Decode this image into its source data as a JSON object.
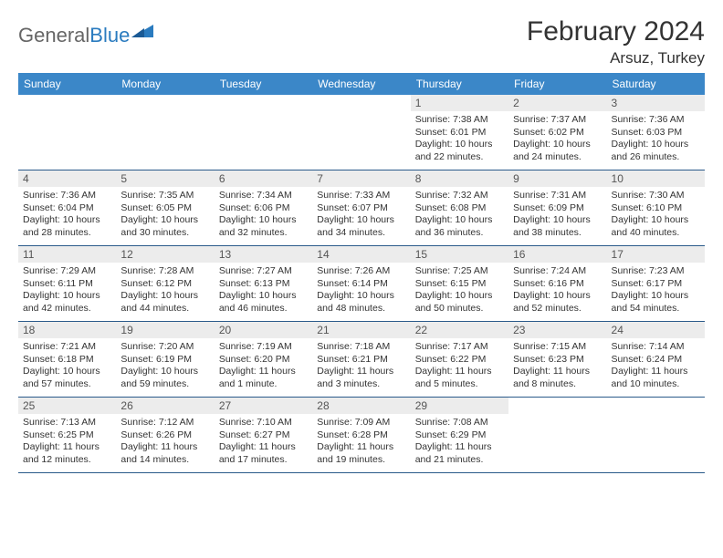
{
  "brand": {
    "part1": "General",
    "part2": "Blue"
  },
  "title": "February 2024",
  "location": "Arsuz, Turkey",
  "colors": {
    "header_bg": "#3b87c8",
    "header_text": "#ffffff",
    "daynum_bg": "#ececec",
    "daynum_text": "#555555",
    "body_text": "#333333",
    "week_border": "#2a5a8a",
    "page_bg": "#ffffff",
    "brand_gray": "#666666",
    "brand_blue": "#2a7bbf"
  },
  "typography": {
    "title_fontsize": 30,
    "location_fontsize": 17,
    "dayhead_fontsize": 12,
    "daynum_fontsize": 12,
    "cell_fontsize": 10.5
  },
  "day_names": [
    "Sunday",
    "Monday",
    "Tuesday",
    "Wednesday",
    "Thursday",
    "Friday",
    "Saturday"
  ],
  "weeks": [
    [
      {
        "empty": true
      },
      {
        "empty": true
      },
      {
        "empty": true
      },
      {
        "empty": true
      },
      {
        "day": "1",
        "sunrise": "Sunrise: 7:38 AM",
        "sunset": "Sunset: 6:01 PM",
        "dl1": "Daylight: 10 hours",
        "dl2": "and 22 minutes."
      },
      {
        "day": "2",
        "sunrise": "Sunrise: 7:37 AM",
        "sunset": "Sunset: 6:02 PM",
        "dl1": "Daylight: 10 hours",
        "dl2": "and 24 minutes."
      },
      {
        "day": "3",
        "sunrise": "Sunrise: 7:36 AM",
        "sunset": "Sunset: 6:03 PM",
        "dl1": "Daylight: 10 hours",
        "dl2": "and 26 minutes."
      }
    ],
    [
      {
        "day": "4",
        "sunrise": "Sunrise: 7:36 AM",
        "sunset": "Sunset: 6:04 PM",
        "dl1": "Daylight: 10 hours",
        "dl2": "and 28 minutes."
      },
      {
        "day": "5",
        "sunrise": "Sunrise: 7:35 AM",
        "sunset": "Sunset: 6:05 PM",
        "dl1": "Daylight: 10 hours",
        "dl2": "and 30 minutes."
      },
      {
        "day": "6",
        "sunrise": "Sunrise: 7:34 AM",
        "sunset": "Sunset: 6:06 PM",
        "dl1": "Daylight: 10 hours",
        "dl2": "and 32 minutes."
      },
      {
        "day": "7",
        "sunrise": "Sunrise: 7:33 AM",
        "sunset": "Sunset: 6:07 PM",
        "dl1": "Daylight: 10 hours",
        "dl2": "and 34 minutes."
      },
      {
        "day": "8",
        "sunrise": "Sunrise: 7:32 AM",
        "sunset": "Sunset: 6:08 PM",
        "dl1": "Daylight: 10 hours",
        "dl2": "and 36 minutes."
      },
      {
        "day": "9",
        "sunrise": "Sunrise: 7:31 AM",
        "sunset": "Sunset: 6:09 PM",
        "dl1": "Daylight: 10 hours",
        "dl2": "and 38 minutes."
      },
      {
        "day": "10",
        "sunrise": "Sunrise: 7:30 AM",
        "sunset": "Sunset: 6:10 PM",
        "dl1": "Daylight: 10 hours",
        "dl2": "and 40 minutes."
      }
    ],
    [
      {
        "day": "11",
        "sunrise": "Sunrise: 7:29 AM",
        "sunset": "Sunset: 6:11 PM",
        "dl1": "Daylight: 10 hours",
        "dl2": "and 42 minutes."
      },
      {
        "day": "12",
        "sunrise": "Sunrise: 7:28 AM",
        "sunset": "Sunset: 6:12 PM",
        "dl1": "Daylight: 10 hours",
        "dl2": "and 44 minutes."
      },
      {
        "day": "13",
        "sunrise": "Sunrise: 7:27 AM",
        "sunset": "Sunset: 6:13 PM",
        "dl1": "Daylight: 10 hours",
        "dl2": "and 46 minutes."
      },
      {
        "day": "14",
        "sunrise": "Sunrise: 7:26 AM",
        "sunset": "Sunset: 6:14 PM",
        "dl1": "Daylight: 10 hours",
        "dl2": "and 48 minutes."
      },
      {
        "day": "15",
        "sunrise": "Sunrise: 7:25 AM",
        "sunset": "Sunset: 6:15 PM",
        "dl1": "Daylight: 10 hours",
        "dl2": "and 50 minutes."
      },
      {
        "day": "16",
        "sunrise": "Sunrise: 7:24 AM",
        "sunset": "Sunset: 6:16 PM",
        "dl1": "Daylight: 10 hours",
        "dl2": "and 52 minutes."
      },
      {
        "day": "17",
        "sunrise": "Sunrise: 7:23 AM",
        "sunset": "Sunset: 6:17 PM",
        "dl1": "Daylight: 10 hours",
        "dl2": "and 54 minutes."
      }
    ],
    [
      {
        "day": "18",
        "sunrise": "Sunrise: 7:21 AM",
        "sunset": "Sunset: 6:18 PM",
        "dl1": "Daylight: 10 hours",
        "dl2": "and 57 minutes."
      },
      {
        "day": "19",
        "sunrise": "Sunrise: 7:20 AM",
        "sunset": "Sunset: 6:19 PM",
        "dl1": "Daylight: 10 hours",
        "dl2": "and 59 minutes."
      },
      {
        "day": "20",
        "sunrise": "Sunrise: 7:19 AM",
        "sunset": "Sunset: 6:20 PM",
        "dl1": "Daylight: 11 hours",
        "dl2": "and 1 minute."
      },
      {
        "day": "21",
        "sunrise": "Sunrise: 7:18 AM",
        "sunset": "Sunset: 6:21 PM",
        "dl1": "Daylight: 11 hours",
        "dl2": "and 3 minutes."
      },
      {
        "day": "22",
        "sunrise": "Sunrise: 7:17 AM",
        "sunset": "Sunset: 6:22 PM",
        "dl1": "Daylight: 11 hours",
        "dl2": "and 5 minutes."
      },
      {
        "day": "23",
        "sunrise": "Sunrise: 7:15 AM",
        "sunset": "Sunset: 6:23 PM",
        "dl1": "Daylight: 11 hours",
        "dl2": "and 8 minutes."
      },
      {
        "day": "24",
        "sunrise": "Sunrise: 7:14 AM",
        "sunset": "Sunset: 6:24 PM",
        "dl1": "Daylight: 11 hours",
        "dl2": "and 10 minutes."
      }
    ],
    [
      {
        "day": "25",
        "sunrise": "Sunrise: 7:13 AM",
        "sunset": "Sunset: 6:25 PM",
        "dl1": "Daylight: 11 hours",
        "dl2": "and 12 minutes."
      },
      {
        "day": "26",
        "sunrise": "Sunrise: 7:12 AM",
        "sunset": "Sunset: 6:26 PM",
        "dl1": "Daylight: 11 hours",
        "dl2": "and 14 minutes."
      },
      {
        "day": "27",
        "sunrise": "Sunrise: 7:10 AM",
        "sunset": "Sunset: 6:27 PM",
        "dl1": "Daylight: 11 hours",
        "dl2": "and 17 minutes."
      },
      {
        "day": "28",
        "sunrise": "Sunrise: 7:09 AM",
        "sunset": "Sunset: 6:28 PM",
        "dl1": "Daylight: 11 hours",
        "dl2": "and 19 minutes."
      },
      {
        "day": "29",
        "sunrise": "Sunrise: 7:08 AM",
        "sunset": "Sunset: 6:29 PM",
        "dl1": "Daylight: 11 hours",
        "dl2": "and 21 minutes."
      },
      {
        "empty": true
      },
      {
        "empty": true
      }
    ]
  ]
}
